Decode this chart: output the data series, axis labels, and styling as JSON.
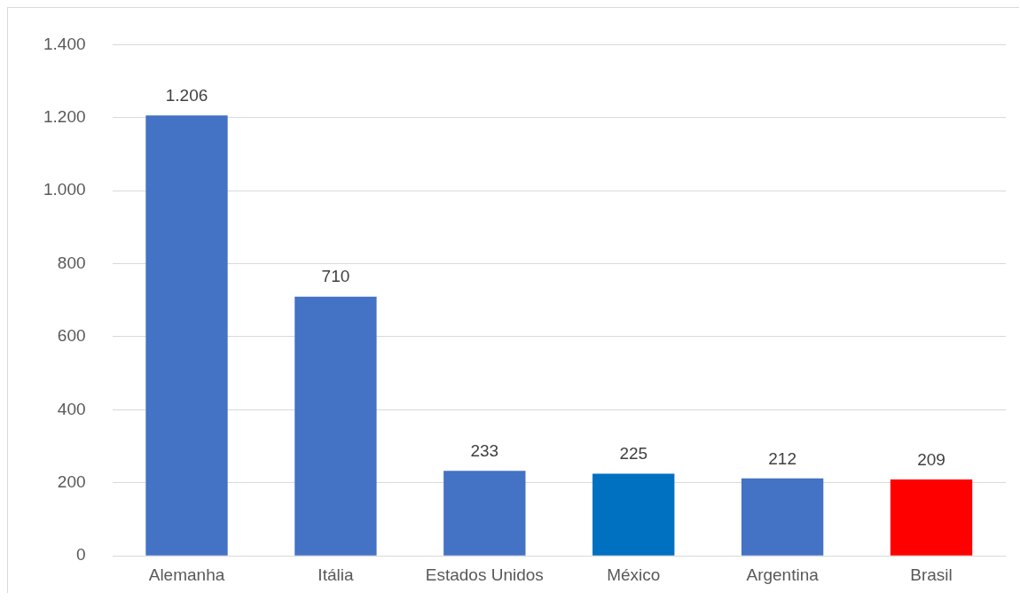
{
  "chart_data": {
    "type": "bar",
    "categories": [
      "Alemanha",
      "Itália",
      "Estados Unidos",
      "México",
      "Argentina",
      "Brasil"
    ],
    "values": [
      1206,
      710,
      233,
      225,
      212,
      209
    ],
    "colors": [
      "#4472c4",
      "#4472c4",
      "#4472c4",
      "#0070c0",
      "#4472c4",
      "#ff0000"
    ],
    "value_labels": [
      "1.206",
      "710",
      "233",
      "225",
      "212",
      "209"
    ],
    "ylim": [
      0,
      1400
    ],
    "yticks": [
      0,
      200,
      400,
      600,
      800,
      {
        "value": 1000,
        "label": "1.000"
      },
      {
        "value": 1200,
        "label": "1.200"
      },
      {
        "value": 1400,
        "label": "1.400"
      }
    ],
    "grid": "y",
    "legend": false
  }
}
